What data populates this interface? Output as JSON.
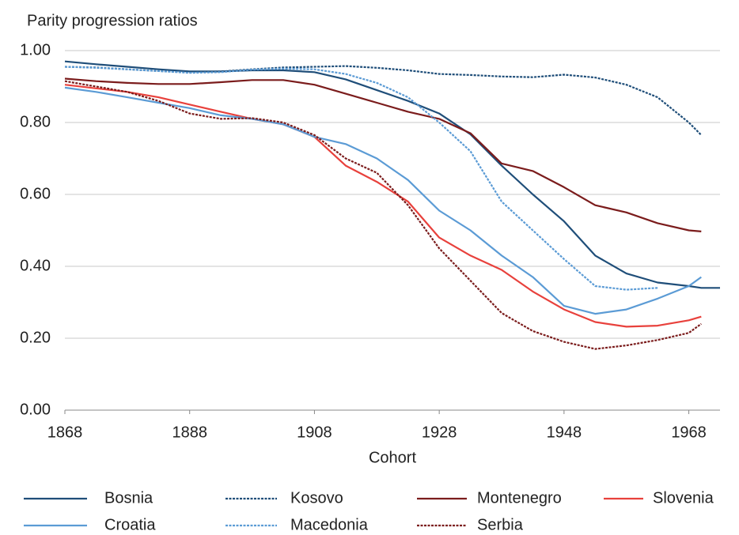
{
  "chart_data": {
    "type": "line",
    "title": "Parity progression ratios",
    "xlabel": "Cohort",
    "x": [
      1868,
      1873,
      1878,
      1883,
      1888,
      1893,
      1898,
      1903,
      1908,
      1913,
      1918,
      1923,
      1928,
      1933,
      1938,
      1943,
      1948,
      1953,
      1958,
      1963,
      1968,
      1970,
      1973
    ],
    "xlim": [
      1868,
      1973
    ],
    "xticks": [
      1868,
      1888,
      1908,
      1928,
      1948,
      1968
    ],
    "ylim": [
      0,
      1
    ],
    "yticks": [
      {
        "value": 0,
        "label": "0.00"
      },
      {
        "value": 0.2,
        "label": "0.20"
      },
      {
        "value": 0.4,
        "label": "0.40"
      },
      {
        "value": 0.6,
        "label": "0.60"
      },
      {
        "value": 0.8,
        "label": "0.80"
      },
      {
        "value": 1,
        "label": "1.00"
      }
    ],
    "grid": true,
    "legend": "bottom",
    "series": [
      {
        "name": "Bosnia",
        "color": "#1f4e79",
        "style": "solid",
        "values": [
          0.97,
          0.962,
          0.955,
          0.948,
          0.942,
          0.942,
          0.945,
          0.945,
          0.94,
          0.92,
          0.89,
          0.86,
          0.825,
          0.767,
          0.68,
          0.6,
          0.525,
          0.43,
          0.38,
          0.355,
          0.345,
          0.34,
          0.34
        ]
      },
      {
        "name": "Kosovo",
        "color": "#1f4e79",
        "style": "dotted",
        "values": [
          0.955,
          0.953,
          0.948,
          0.943,
          0.94,
          0.942,
          0.948,
          0.953,
          0.955,
          0.957,
          0.952,
          0.945,
          0.935,
          0.932,
          0.928,
          0.926,
          0.933,
          0.925,
          0.905,
          0.87,
          0.8,
          0.765,
          null
        ]
      },
      {
        "name": "Montenegro",
        "color": "#7b1c1c",
        "style": "solid",
        "values": [
          0.922,
          0.915,
          0.91,
          0.907,
          0.907,
          0.912,
          0.918,
          0.918,
          0.905,
          0.88,
          0.855,
          0.83,
          0.81,
          0.77,
          0.686,
          0.665,
          0.62,
          0.57,
          0.55,
          0.52,
          0.5,
          0.497,
          null
        ]
      },
      {
        "name": "Slovenia",
        "color": "#e8413c",
        "style": "solid",
        "values": [
          0.905,
          0.895,
          0.885,
          0.87,
          0.85,
          0.83,
          0.81,
          0.795,
          0.76,
          0.68,
          0.635,
          0.58,
          0.48,
          0.43,
          0.39,
          0.33,
          0.28,
          0.245,
          0.232,
          0.235,
          0.25,
          0.26,
          null
        ]
      },
      {
        "name": "Croatia",
        "color": "#5b9bd5",
        "style": "solid",
        "values": [
          0.897,
          0.885,
          0.87,
          0.855,
          0.84,
          0.82,
          0.81,
          0.795,
          0.76,
          0.74,
          0.7,
          0.64,
          0.555,
          0.5,
          0.43,
          0.37,
          0.29,
          0.268,
          0.28,
          0.31,
          0.345,
          0.37,
          null
        ]
      },
      {
        "name": "Macedonia",
        "color": "#5b9bd5",
        "style": "dotted",
        "values": [
          0.955,
          0.952,
          0.948,
          0.943,
          0.938,
          0.94,
          0.947,
          0.95,
          0.948,
          0.935,
          0.91,
          0.87,
          0.8,
          0.72,
          0.58,
          0.5,
          0.42,
          0.345,
          0.335,
          0.34,
          null,
          null,
          null
        ]
      },
      {
        "name": "Serbia",
        "color": "#7b1c1c",
        "style": "dotted",
        "values": [
          0.915,
          0.9,
          0.885,
          0.86,
          0.825,
          0.81,
          0.812,
          0.8,
          0.765,
          0.7,
          0.66,
          0.57,
          0.45,
          0.36,
          0.27,
          0.22,
          0.19,
          0.17,
          0.18,
          0.195,
          0.215,
          0.24,
          null
        ]
      }
    ]
  }
}
